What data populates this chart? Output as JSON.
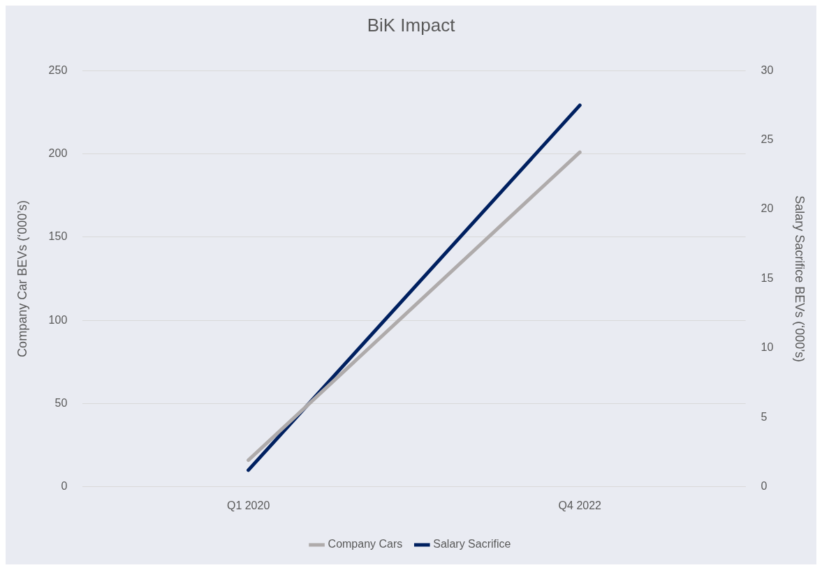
{
  "chart_data": {
    "type": "line",
    "title": "BiK Impact",
    "ylabel": "Company Car BEVs (‘000’s)",
    "y2label": "Salary Sacrifice BEVs (‘000’s)",
    "categories": [
      "Q1 2020",
      "Q4 2022"
    ],
    "series": [
      {
        "name": "Company Cars",
        "color": "#afabab",
        "values": [
          16,
          201
        ]
      },
      {
        "name": "Salary Sacrifice",
        "color": "#002060",
        "values": [
          1.2,
          27.5
        ],
        "axis": "y2"
      }
    ],
    "ylim": [
      0,
      250
    ],
    "yticks": [
      0,
      50,
      100,
      150,
      200,
      250
    ],
    "y2lim": [
      0,
      30
    ],
    "y2ticks": [
      0,
      5,
      10,
      15,
      20,
      25,
      30
    ],
    "grid": "y",
    "legend": "bottom"
  }
}
